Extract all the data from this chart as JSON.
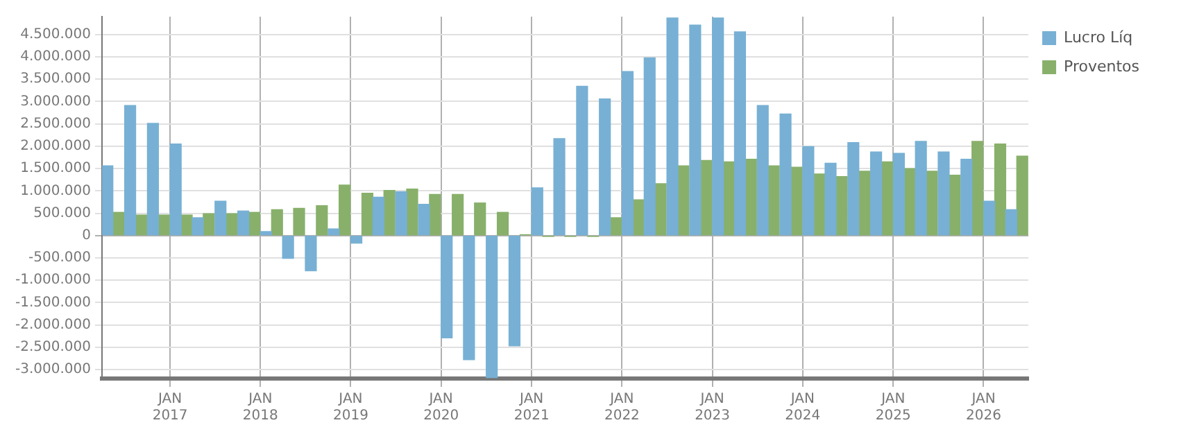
{
  "chart_data": {
    "type": "bar",
    "x": [
      "2016-05-15",
      "2016-08-15",
      "2016-11-15",
      "2017-02-15",
      "2017-05-15",
      "2017-08-15",
      "2017-11-15",
      "2018-02-15",
      "2018-05-15",
      "2018-08-15",
      "2018-11-15",
      "2019-02-15",
      "2019-05-15",
      "2019-08-15",
      "2019-11-15",
      "2020-02-15",
      "2020-05-15",
      "2020-08-15",
      "2020-11-15",
      "2021-02-15",
      "2021-05-15",
      "2021-08-15",
      "2021-11-15",
      "2022-02-15",
      "2022-05-15",
      "2022-08-15",
      "2022-11-15",
      "2023-02-15",
      "2023-05-15",
      "2023-08-15",
      "2023-11-15",
      "2024-02-15",
      "2024-05-15",
      "2024-08-15",
      "2024-11-15",
      "2025-02-15",
      "2025-05-15",
      "2025-08-15",
      "2025-11-15",
      "2026-02-15",
      "2026-05-15"
    ],
    "series": [
      {
        "name": "Lucro Líq",
        "color": "#77b0d4",
        "values": [
          1560000,
          2910000,
          2510000,
          2050000,
          400000,
          770000,
          550000,
          90000,
          -510000,
          -790000,
          150000,
          -170000,
          860000,
          980000,
          700000,
          -2290000,
          -2780000,
          -3180000,
          -2470000,
          1070000,
          2170000,
          3340000,
          3060000,
          3670000,
          3980000,
          4870000,
          4710000,
          4870000,
          4560000,
          2910000,
          2720000,
          1990000,
          1620000,
          2080000,
          1870000,
          1840000,
          2110000,
          1870000,
          1710000,
          770000,
          580000
        ]
      },
      {
        "name": "Proventos",
        "color": "#88b06a",
        "values": [
          520000,
          460000,
          460000,
          460000,
          490000,
          490000,
          520000,
          580000,
          610000,
          670000,
          1130000,
          950000,
          1010000,
          1040000,
          920000,
          920000,
          730000,
          520000,
          20000,
          -20000,
          -20000,
          -20000,
          400000,
          800000,
          1160000,
          1560000,
          1680000,
          1650000,
          1710000,
          1560000,
          1530000,
          1380000,
          1320000,
          1440000,
          1650000,
          1500000,
          1440000,
          1350000,
          2110000,
          2050000,
          1780000
        ]
      }
    ],
    "xlim": [
      "2016-04-01",
      "2026-07-01"
    ],
    "xticks": [
      {
        "value": "2017-01-01",
        "label": "JAN 2017"
      },
      {
        "value": "2018-01-01",
        "label": "JAN 2018"
      },
      {
        "value": "2019-01-01",
        "label": "JAN 2019"
      },
      {
        "value": "2020-01-01",
        "label": "JAN 2020"
      },
      {
        "value": "2021-01-01",
        "label": "JAN 2021"
      },
      {
        "value": "2022-01-01",
        "label": "JAN 2022"
      },
      {
        "value": "2023-01-01",
        "label": "JAN 2023"
      },
      {
        "value": "2024-01-01",
        "label": "JAN 2024"
      },
      {
        "value": "2025-01-01",
        "label": "JAN 2025"
      },
      {
        "value": "2026-01-01",
        "label": "JAN 2026"
      }
    ],
    "ylim": [
      -3200000,
      4900000
    ],
    "yticks": [
      {
        "value": -3000000,
        "label": "-3.000.000"
      },
      {
        "value": -2500000,
        "label": "-2.500.000"
      },
      {
        "value": -2000000,
        "label": "-2.000.000"
      },
      {
        "value": -1500000,
        "label": "-1.500.000"
      },
      {
        "value": -1000000,
        "label": "-1.000.000"
      },
      {
        "value": -500000,
        "label": "-500.000"
      },
      0,
      {
        "value": 500000,
        "label": "500.000"
      },
      {
        "value": 1000000,
        "label": "1.000.000"
      },
      {
        "value": 1500000,
        "label": "1.500.000"
      },
      {
        "value": 2000000,
        "label": "2.000.000"
      },
      {
        "value": 2500000,
        "label": "2.500.000"
      },
      {
        "value": 3000000,
        "label": "3.000.000"
      },
      {
        "value": 3500000,
        "label": "3.500.000"
      },
      {
        "value": 4000000,
        "label": "4.000.000"
      },
      {
        "value": 4500000,
        "label": "4.500.000"
      }
    ],
    "grid": true,
    "legend": "top right"
  }
}
